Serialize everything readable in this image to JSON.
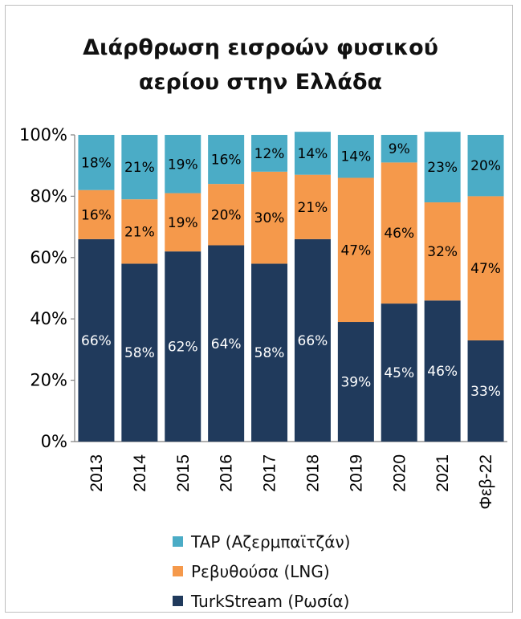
{
  "title_line1": "Διάρθρωση εισροών φυσικού",
  "title_line2": "αερίου στην Ελλάδα",
  "chart_data": {
    "type": "bar",
    "stacked": true,
    "categories": [
      "2013",
      "2014",
      "2015",
      "2016",
      "2017",
      "2018",
      "2019",
      "2020",
      "2021",
      "Φεβ-22"
    ],
    "series": [
      {
        "name": "TurkStream (Ρωσία)",
        "color": "#203a5c",
        "label_color": "#ffffff",
        "values": [
          66,
          58,
          62,
          64,
          58,
          66,
          39,
          45,
          46,
          33
        ]
      },
      {
        "name": "Ρεβυθούσα (LNG)",
        "color": "#f5994b",
        "label_color": "#000000",
        "values": [
          16,
          21,
          19,
          20,
          30,
          21,
          47,
          46,
          32,
          47
        ]
      },
      {
        "name": "TAP (Αζερμπαϊτζάν)",
        "color": "#4bacc6",
        "label_color": "#000000",
        "values": [
          18,
          21,
          19,
          16,
          12,
          14,
          14,
          9,
          23,
          20
        ]
      }
    ],
    "yticks": [
      "0%",
      "20%",
      "40%",
      "60%",
      "80%",
      "100%"
    ],
    "ylim": [
      0,
      100
    ],
    "grid": false,
    "legend_position": "bottom"
  }
}
